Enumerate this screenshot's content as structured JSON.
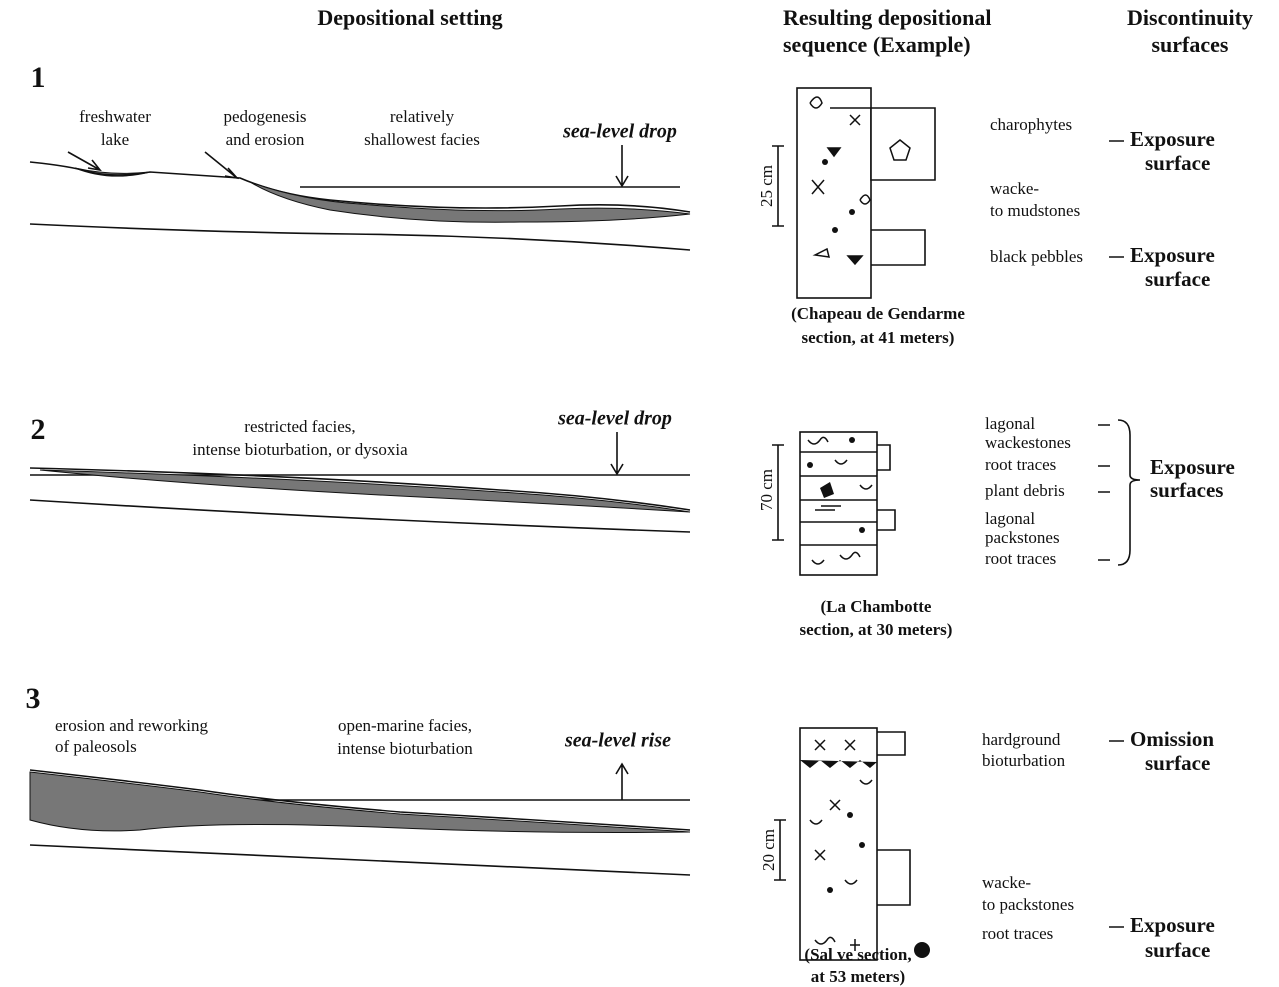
{
  "headers": {
    "depositional_setting": "Depositional setting",
    "resulting_sequence": [
      "Resulting depositional",
      "sequence (Example)"
    ],
    "discontinuity": [
      "Discontinuity",
      "surfaces"
    ]
  },
  "panels": [
    {
      "number": "1",
      "setting_labels": [
        [
          "freshwater",
          "lake"
        ],
        [
          "pedogenesis",
          "and erosion"
        ],
        [
          "relatively",
          "shallowest facies"
        ]
      ],
      "sea_level": "sea-level drop",
      "scale": "25 cm",
      "facies": [
        [
          "charophytes"
        ],
        [
          "wacke-",
          "to mudstones"
        ],
        [
          "black pebbles"
        ]
      ],
      "surfaces": [
        [
          "Exposure",
          "surface"
        ],
        [
          "Exposure",
          "surface"
        ]
      ],
      "section": [
        "(Chapeau de Gendarme",
        "section, at 41 meters)"
      ]
    },
    {
      "number": "2",
      "setting_labels": [
        [
          "restricted facies,",
          "intense bioturbation, or dysoxia"
        ]
      ],
      "sea_level": "sea-level drop",
      "scale": "70 cm",
      "facies": [
        [
          "lagonal",
          "wackestones"
        ],
        [
          "root traces"
        ],
        [
          "plant debris"
        ],
        [
          "lagonal",
          "packstones"
        ],
        [
          "root traces"
        ]
      ],
      "surfaces": [
        [
          "Exposure",
          "surfaces"
        ]
      ],
      "section": [
        "(La Chambotte",
        "section, at 30 meters)"
      ]
    },
    {
      "number": "3",
      "setting_labels": [
        [
          "erosion and reworking",
          "of paleosols"
        ],
        [
          "open-marine facies,",
          "intense bioturbation"
        ]
      ],
      "sea_level": "sea-level rise",
      "scale": "20 cm",
      "facies": [
        [
          "hardground",
          "bioturbation"
        ],
        [
          "wacke-",
          "to packstones"
        ],
        [
          "root traces"
        ]
      ],
      "surfaces": [
        [
          "Omission",
          "surface"
        ],
        [
          "Exposure",
          "surface"
        ]
      ],
      "section": [
        "(Sal ve section,",
        "at 53 meters)"
      ]
    }
  ]
}
